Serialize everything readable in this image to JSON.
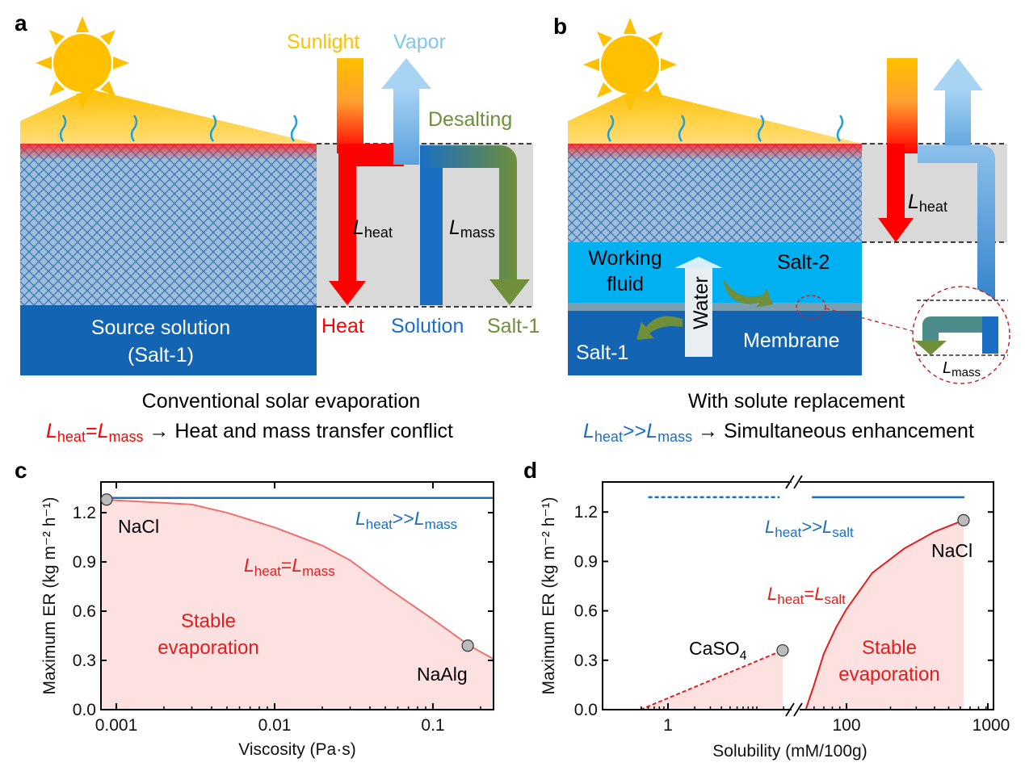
{
  "colors": {
    "sun": "#ffc000",
    "red": "#ff0000",
    "blue": "#1a6fc4",
    "lightblue": "#7fb9e6",
    "green": "#6f8f3a",
    "cyan": "#00b0f0",
    "gray": "#d9d9d9",
    "fill": "#fde0e0"
  },
  "panel_a": {
    "letter": "a",
    "sunlight": "Sunlight",
    "vapor": "Vapor",
    "desalting": "Desalting",
    "L": "L",
    "heat_sub": "heat",
    "mass_sub": "mass",
    "source_line1": "Source solution",
    "source_line2": "(Salt-1)",
    "heat": "Heat",
    "solution": "Solution",
    "salt1": "Salt-1",
    "caption": "Conventional solar evaporation",
    "relation": {
      "eq": "=",
      "arrow": " → Heat and mass transfer conflict"
    }
  },
  "panel_b": {
    "letter": "b",
    "L": "L",
    "heat_sub": "heat",
    "mass_sub": "mass",
    "working1": "Working",
    "working2": "fluid",
    "water": "Water",
    "salt2": "Salt-2",
    "salt1": "Salt-1",
    "membrane": "Membrane",
    "caption": "With solute replacement",
    "relation": {
      "eq": ">>",
      "arrow": " → Simultaneous enhancement"
    }
  },
  "chart_data": [
    {
      "panel": "c",
      "type": "line",
      "xscale": "log",
      "xlabel": "Viscosity (Pa·s)",
      "ylabel": "Maximum ER (kg m⁻² h⁻¹)",
      "xlim": [
        0.0008,
        0.24
      ],
      "ylim": [
        0,
        1.4
      ],
      "xticks": [
        0.001,
        0.01,
        0.1
      ],
      "xtick_labels": [
        "0.001",
        "0.01",
        "0.1"
      ],
      "yticks": [
        0,
        0.3,
        0.6,
        0.9,
        1.2
      ],
      "ytick_labels": [
        "0.0",
        "0.3",
        "0.6",
        "0.9",
        "1.2"
      ],
      "series": [
        {
          "name": "Lheat>>Lmass",
          "color": "#1a6fc4",
          "points": [
            [
              0.0008,
              1.29
            ],
            [
              0.24,
              1.29
            ]
          ]
        },
        {
          "name": "Lheat=Lmass",
          "color": "#f07070",
          "fill": true,
          "points": [
            [
              0.0008,
              1.28
            ],
            [
              0.001,
              1.275
            ],
            [
              0.002,
              1.26
            ],
            [
              0.003,
              1.25
            ],
            [
              0.005,
              1.2
            ],
            [
              0.01,
              1.11
            ],
            [
              0.02,
              1.0
            ],
            [
              0.03,
              0.91
            ],
            [
              0.05,
              0.75
            ],
            [
              0.1,
              0.55
            ],
            [
              0.17,
              0.39
            ],
            [
              0.24,
              0.31
            ]
          ]
        }
      ],
      "markers": [
        {
          "label": "NaCl",
          "x": 0.00085,
          "y": 1.28
        },
        {
          "label": "NaAlg",
          "x": 0.166,
          "y": 0.39
        }
      ],
      "annotations": {
        "blue": {
          "L": "L",
          "a": "heat",
          "op": ">>",
          "b": "mass"
        },
        "red": {
          "L": "L",
          "a": "heat",
          "op": "=",
          "b": "mass"
        },
        "region1": "Stable",
        "region2": "evaporation"
      }
    },
    {
      "panel": "d",
      "type": "line",
      "xscale": "log (broken axis)",
      "xlabel": "Solubility (mM/100g)",
      "ylabel": "Maximum ER (kg m⁻² h⁻¹)",
      "ylim": [
        0,
        1.4
      ],
      "xticks": [
        1,
        100,
        1000
      ],
      "xtick_labels": [
        "1",
        "100",
        "1000"
      ],
      "yticks": [
        0,
        0.3,
        0.6,
        0.9,
        1.2
      ],
      "ytick_labels": [
        "0.0",
        "0.3",
        "0.6",
        "0.9",
        "1.2"
      ],
      "series": [
        {
          "name": "Lheat>>Lsalt (low)",
          "color": "#1a6fc4",
          "dashed": true,
          "segment": "left",
          "points": [
            [
              0.6,
              1.29
            ],
            [
              18,
              1.29
            ]
          ]
        },
        {
          "name": "Lheat>>Lsalt (high)",
          "color": "#1a6fc4",
          "segment": "right",
          "points": [
            [
              58,
              1.29
            ],
            [
              640,
              1.29
            ]
          ]
        },
        {
          "name": "Lheat=Lsalt (low)",
          "color": "#e02020",
          "dashed": true,
          "fill": true,
          "segment": "left",
          "points": [
            [
              0.49,
              0
            ],
            [
              19.5,
              0.36
            ]
          ]
        },
        {
          "name": "Lheat=Lsalt (high)",
          "color": "#e02020",
          "fill": true,
          "segment": "right",
          "points": [
            [
              52.6,
              0
            ],
            [
              60,
              0.15
            ],
            [
              70,
              0.34
            ],
            [
              85,
              0.5
            ],
            [
              100,
              0.61
            ],
            [
              150,
              0.83
            ],
            [
              250,
              0.98
            ],
            [
              400,
              1.08
            ],
            [
              632,
              1.15
            ]
          ]
        }
      ],
      "markers": [
        {
          "label": "CaSO",
          "sub": "4",
          "x": 19.5,
          "y": 0.36,
          "segment": "left"
        },
        {
          "label": "NaCl",
          "x": 632,
          "y": 1.15,
          "segment": "right"
        }
      ],
      "annotations": {
        "blue": {
          "L": "L",
          "a": "heat",
          "op": ">>",
          "b": "salt"
        },
        "red": {
          "L": "L",
          "a": "heat",
          "op": "=",
          "b": "salt"
        },
        "region1": "Stable",
        "region2": "evaporation"
      }
    }
  ]
}
